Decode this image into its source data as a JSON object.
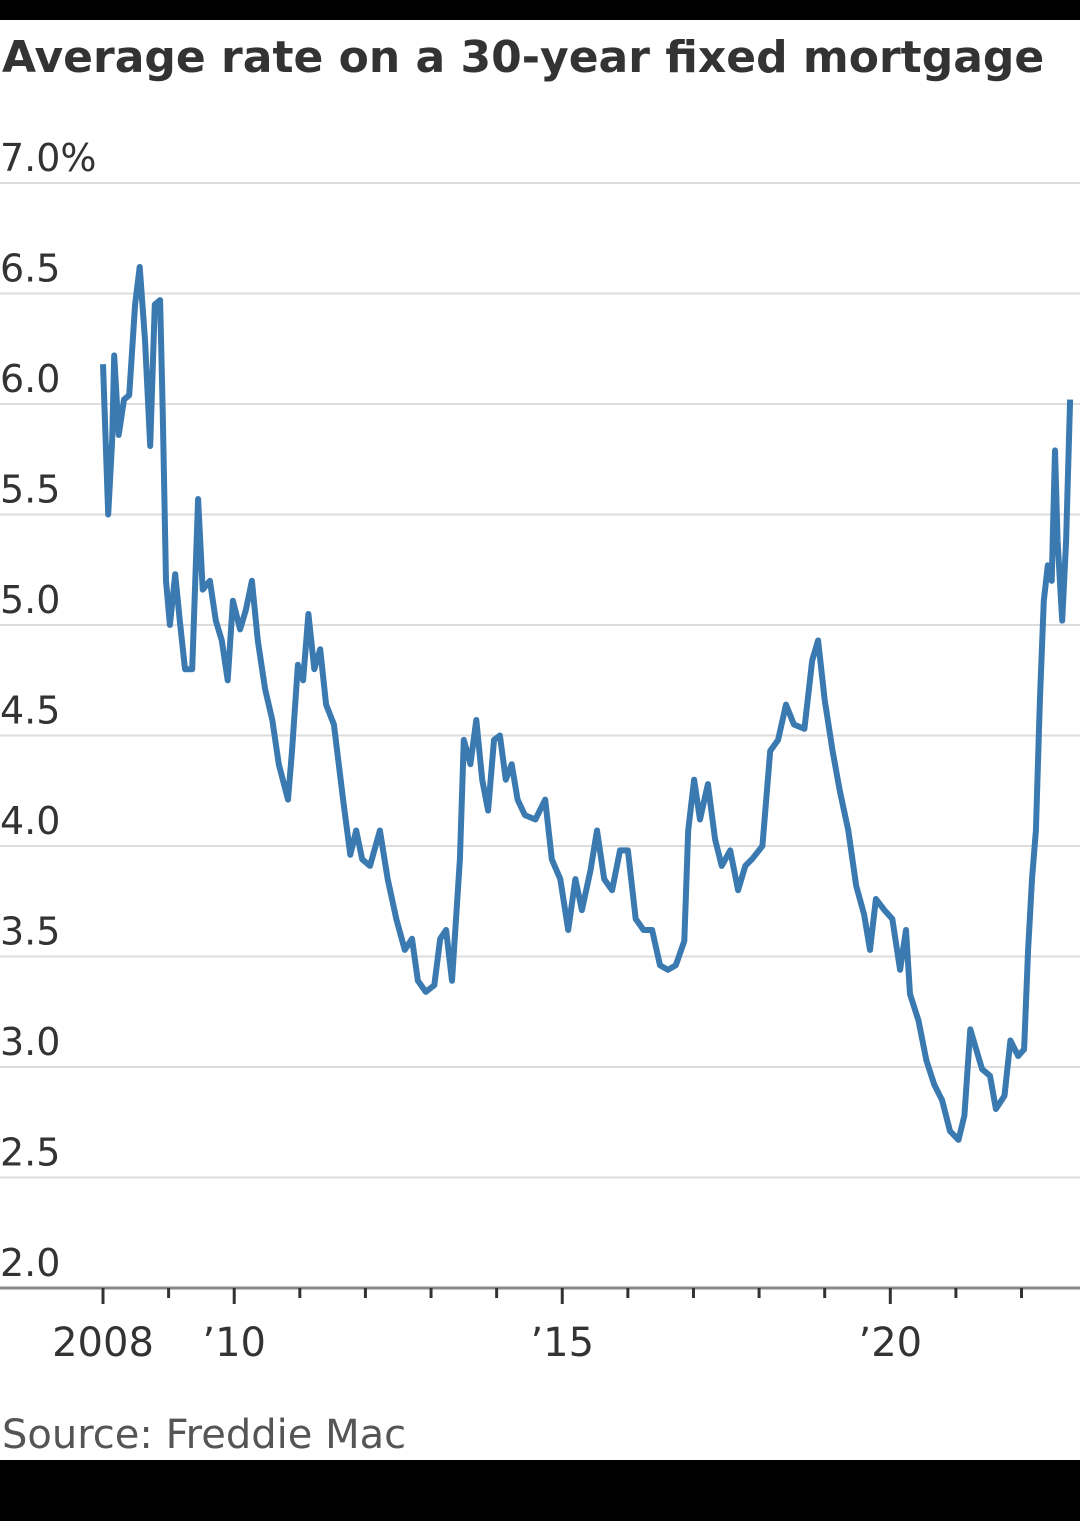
{
  "chart_data": {
    "type": "line",
    "title": "Average rate on a 30-year fixed mortgage",
    "source": "Source: Freddie Mac",
    "ylim": [
      2,
      7
    ],
    "yticks": [
      {
        "value": 2,
        "label": "2.0"
      },
      2.5,
      {
        "value": 3,
        "label": "3.0"
      },
      3.5,
      {
        "value": 4,
        "label": "4.0"
      },
      4.5,
      {
        "value": 5,
        "label": "5.0"
      },
      5.5,
      {
        "value": 6,
        "label": "6.0"
      },
      6.5,
      {
        "value": 7,
        "label": "7.0%"
      }
    ],
    "xlim": [
      2008,
      2022.8
    ],
    "xticks": [
      {
        "value": 2008,
        "label": "2008"
      },
      {
        "value": 2010,
        "label": "’10"
      },
      {
        "value": 2015,
        "label": "’15"
      },
      {
        "value": 2020,
        "label": "’20"
      }
    ],
    "xminor_ticks": [
      2009,
      2011,
      2012,
      2013,
      2014,
      2016,
      2017,
      2018,
      2019,
      2021,
      2022
    ],
    "grid": true,
    "series": [
      {
        "name": "30-year fixed",
        "color": "#3a7ab0",
        "x": [
          2008.0,
          2008.08,
          2008.14,
          2008.17,
          2008.24,
          2008.32,
          2008.4,
          2008.49,
          2008.56,
          2008.64,
          2008.72,
          2008.79,
          2008.87,
          2008.91,
          2008.96,
          2009.02,
          2009.1,
          2009.17,
          2009.25,
          2009.36,
          2009.45,
          2009.52,
          2009.63,
          2009.72,
          2009.81,
          2009.9,
          2009.98,
          2010.09,
          2010.18,
          2010.27,
          2010.36,
          2010.47,
          2010.58,
          2010.68,
          2010.82,
          2010.88,
          2010.97,
          2011.05,
          2011.13,
          2011.22,
          2011.31,
          2011.4,
          2011.52,
          2011.66,
          2011.77,
          2011.86,
          2011.95,
          2012.07,
          2012.22,
          2012.34,
          2012.47,
          2012.6,
          2012.71,
          2012.8,
          2012.92,
          2013.05,
          2013.14,
          2013.23,
          2013.32,
          2013.44,
          2013.5,
          2013.6,
          2013.69,
          2013.78,
          2013.87,
          2013.96,
          2014.05,
          2014.14,
          2014.23,
          2014.32,
          2014.43,
          2014.59,
          2014.74,
          2014.84,
          2014.97,
          2015.09,
          2015.2,
          2015.3,
          2015.43,
          2015.53,
          2015.64,
          2015.76,
          2015.88,
          2016.0,
          2016.12,
          2016.24,
          2016.37,
          2016.49,
          2016.61,
          2016.73,
          2016.86,
          2016.92,
          2017.01,
          2017.1,
          2017.22,
          2017.33,
          2017.43,
          2017.56,
          2017.68,
          2017.79,
          2017.89,
          2018.05,
          2018.17,
          2018.29,
          2018.41,
          2018.53,
          2018.69,
          2018.81,
          2018.9,
          2019.0,
          2019.12,
          2019.23,
          2019.36,
          2019.48,
          2019.6,
          2019.69,
          2019.78,
          2019.91,
          2020.03,
          2020.15,
          2020.24,
          2020.3,
          2020.43,
          2020.55,
          2020.67,
          2020.79,
          2020.91,
          2021.04,
          2021.13,
          2021.22,
          2021.31,
          2021.4,
          2021.52,
          2021.61,
          2021.74,
          2021.83,
          2021.95,
          2022.04,
          2022.1,
          2022.16,
          2022.22,
          2022.28,
          2022.34,
          2022.4,
          2022.46,
          2022.51,
          2022.55,
          2022.62,
          2022.68,
          2022.74
        ],
        "values": [
          6.18,
          5.5,
          5.84,
          6.22,
          5.86,
          6.02,
          6.04,
          6.45,
          6.62,
          6.29,
          5.81,
          6.45,
          6.47,
          5.97,
          5.2,
          5.0,
          5.23,
          5.02,
          4.8,
          4.8,
          5.57,
          5.16,
          5.2,
          5.02,
          4.93,
          4.75,
          5.11,
          4.98,
          5.07,
          5.2,
          4.93,
          4.71,
          4.57,
          4.37,
          4.21,
          4.43,
          4.82,
          4.75,
          5.05,
          4.8,
          4.89,
          4.64,
          4.55,
          4.21,
          3.96,
          4.07,
          3.94,
          3.91,
          4.07,
          3.85,
          3.67,
          3.53,
          3.58,
          3.39,
          3.34,
          3.37,
          3.58,
          3.62,
          3.39,
          3.94,
          4.48,
          4.37,
          4.57,
          4.3,
          4.16,
          4.48,
          4.5,
          4.3,
          4.37,
          4.21,
          4.14,
          4.12,
          4.21,
          3.94,
          3.85,
          3.62,
          3.85,
          3.71,
          3.89,
          4.07,
          3.85,
          3.8,
          3.98,
          3.98,
          3.67,
          3.62,
          3.62,
          3.46,
          3.44,
          3.46,
          3.57,
          4.07,
          4.3,
          4.12,
          4.28,
          4.03,
          3.91,
          3.98,
          3.8,
          3.91,
          3.94,
          4.0,
          4.43,
          4.48,
          4.64,
          4.55,
          4.53,
          4.84,
          4.93,
          4.66,
          4.43,
          4.25,
          4.07,
          3.82,
          3.69,
          3.53,
          3.76,
          3.71,
          3.67,
          3.44,
          3.62,
          3.33,
          3.21,
          3.03,
          2.92,
          2.85,
          2.71,
          2.67,
          2.78,
          3.17,
          3.08,
          2.99,
          2.96,
          2.81,
          2.87,
          3.12,
          3.05,
          3.08,
          3.53,
          3.85,
          4.07,
          4.66,
          5.11,
          5.27,
          5.2,
          5.79,
          5.38,
          5.02,
          5.38,
          6.02
        ]
      }
    ]
  }
}
